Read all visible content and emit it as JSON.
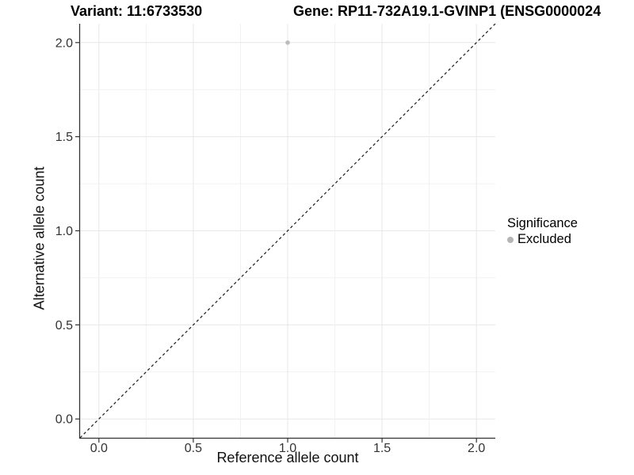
{
  "chart_data": {
    "type": "scatter",
    "titles": {
      "left": "Variant: 11:6733530",
      "right": "Gene: RP11-732A19.1-GVINP1 (ENSG0000024"
    },
    "xlabel": "Reference allele count",
    "ylabel": "Alternative allele count",
    "xlim": [
      -0.1,
      2.1
    ],
    "ylim": [
      -0.1,
      2.1
    ],
    "x_ticks": [
      0.0,
      0.5,
      1.0,
      1.5,
      2.0
    ],
    "y_ticks": [
      0.0,
      0.5,
      1.0,
      1.5,
      2.0
    ],
    "grid_interval": 0.25,
    "grid_on": true,
    "points": [
      {
        "x": 1.0,
        "y": 2.0,
        "series": "Excluded"
      }
    ],
    "reference_line": {
      "style": "dashed",
      "from": [
        -0.1,
        -0.1
      ],
      "to": [
        2.1,
        2.1
      ],
      "note": "identity line y = x"
    },
    "legend": {
      "title": "Significance",
      "position": "right",
      "entries": [
        {
          "label": "Excluded",
          "color": "#b5b5b5"
        }
      ]
    },
    "colors": {
      "point": "#bdbdbd",
      "grid_major": "#e7e7e7",
      "grid_minor": "#f1f1f1",
      "axis_line": "#333333",
      "tick_label": "#333333",
      "dashed_line": "#1a1a1a"
    }
  }
}
